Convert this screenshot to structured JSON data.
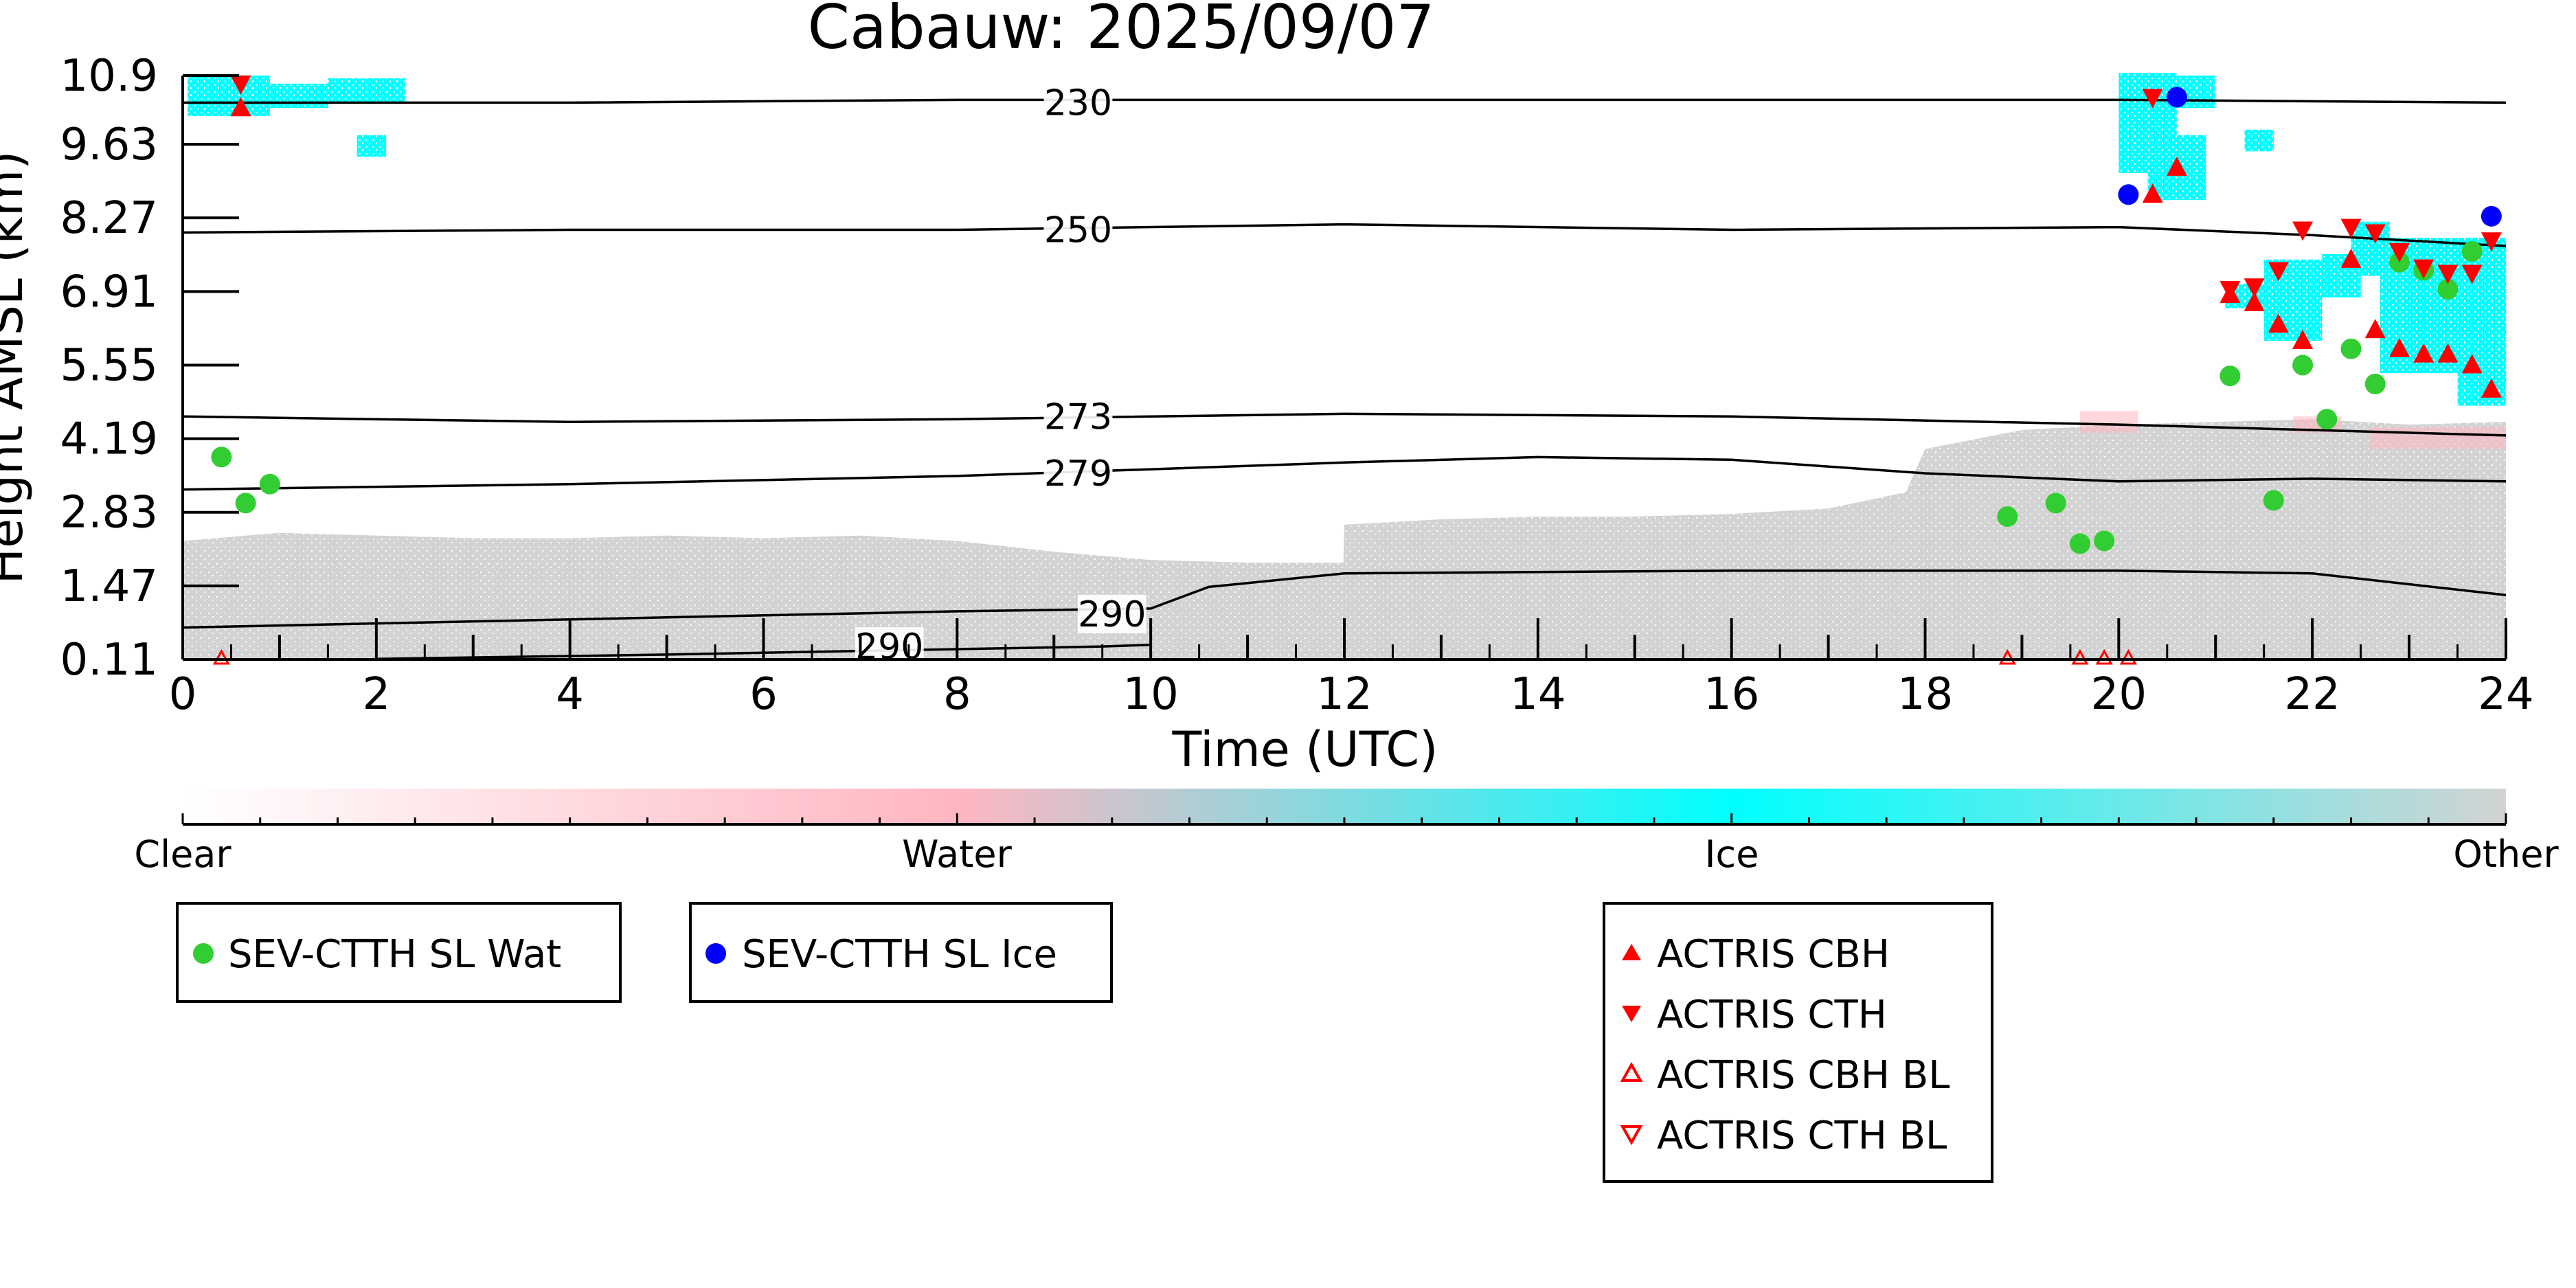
{
  "chart_data": {
    "type": "scatter",
    "title": "Cabauw: 2025/09/07",
    "xlabel": "Time (UTC)",
    "ylabel": "Height AMSL (km)",
    "xlim": [
      0,
      24
    ],
    "ylim": [
      0.11,
      10.9
    ],
    "x_ticks": [
      "0",
      "2",
      "4",
      "6",
      "8",
      "10",
      "12",
      "14",
      "16",
      "18",
      "20",
      "22",
      "24"
    ],
    "y_ticks": [
      "0.11",
      "1.47",
      "2.83",
      "4.19",
      "5.55",
      "6.91",
      "8.27",
      "9.63",
      "10.9"
    ],
    "colorbar": {
      "labels": [
        "Clear",
        "Water",
        "Ice",
        "Other"
      ],
      "colors": {
        "clear": "#ffffff",
        "water": "#ffb6c1",
        "ice": "#00ffff",
        "other": "#d3d3d3"
      }
    },
    "contours": [
      {
        "label": "230",
        "x": [
          0,
          4,
          8,
          12,
          16,
          20,
          24
        ],
        "y": [
          10.4,
          10.4,
          10.45,
          10.45,
          10.45,
          10.45,
          10.4
        ]
      },
      {
        "label": "250",
        "x": [
          0,
          4,
          8,
          12,
          16,
          20,
          22,
          24
        ],
        "y": [
          8.0,
          8.05,
          8.05,
          8.15,
          8.05,
          8.1,
          7.95,
          7.75
        ]
      },
      {
        "label": "273",
        "x": [
          0,
          4,
          8,
          12,
          16,
          20,
          22,
          24
        ],
        "y": [
          4.6,
          4.5,
          4.55,
          4.65,
          4.6,
          4.45,
          4.35,
          4.25
        ]
      },
      {
        "label": "279",
        "x": [
          0,
          4,
          8,
          12,
          14,
          16,
          18,
          20,
          22,
          24
        ],
        "y": [
          3.25,
          3.35,
          3.5,
          3.75,
          3.85,
          3.8,
          3.55,
          3.4,
          3.45,
          3.4
        ]
      },
      {
        "label": "290",
        "x": [
          0,
          4,
          8,
          10,
          10.6,
          12,
          16,
          20,
          22,
          24
        ],
        "y": [
          0.7,
          0.85,
          1.0,
          1.05,
          1.45,
          1.7,
          1.75,
          1.75,
          1.7,
          1.3
        ]
      },
      {
        "label": "290",
        "x": [
          2,
          5,
          8,
          9.5,
          10
        ],
        "y": [
          0.12,
          0.2,
          0.3,
          0.35,
          0.38
        ]
      }
    ],
    "series": [
      {
        "name": "SEV-CTTH SL Wat",
        "color": "#32cd32",
        "marker": "circle",
        "x": [
          0.4,
          0.65,
          0.9,
          18.85,
          19.35,
          19.6,
          19.85,
          21.15,
          21.6,
          21.9,
          22.15,
          22.4,
          22.65,
          22.9,
          23.15,
          23.4,
          23.65
        ],
        "y": [
          3.85,
          3.0,
          3.35,
          2.75,
          3.0,
          2.25,
          2.3,
          5.35,
          3.05,
          5.55,
          4.55,
          5.85,
          5.2,
          7.45,
          7.3,
          6.95,
          7.65
        ]
      },
      {
        "name": "SEV-CTTH SL Ice",
        "color": "#0000ff",
        "marker": "circle",
        "x": [
          20.1,
          20.6,
          23.85
        ],
        "y": [
          8.7,
          10.5,
          8.3
        ]
      },
      {
        "name": "ACTRIS CBH",
        "color": "#ff0000",
        "marker": "triangle-up",
        "x": [
          0.6,
          20.35,
          20.6,
          21.15,
          21.4,
          21.65,
          21.9,
          22.4,
          22.65,
          22.9,
          23.15,
          23.4,
          23.65,
          23.85
        ],
        "y": [
          10.3,
          8.7,
          9.2,
          6.85,
          6.7,
          6.3,
          6.0,
          7.5,
          6.2,
          5.85,
          5.75,
          5.75,
          5.55,
          5.1
        ]
      },
      {
        "name": "ACTRIS CTH",
        "color": "#ff0000",
        "marker": "triangle-down",
        "x": [
          0.6,
          20.35,
          21.15,
          21.4,
          21.65,
          21.9,
          22.4,
          22.65,
          22.9,
          23.15,
          23.4,
          23.65,
          23.85
        ],
        "y": [
          10.75,
          10.5,
          6.95,
          7.0,
          7.3,
          8.05,
          8.1,
          8.0,
          7.65,
          7.35,
          7.25,
          7.25,
          7.85
        ]
      },
      {
        "name": "ACTRIS CBH BL",
        "color": "#ff0000",
        "marker": "triangle-up-open",
        "x": [
          0.4,
          18.85,
          19.6,
          19.85,
          20.1
        ],
        "y": [
          0.11,
          0.11,
          0.11,
          0.11,
          0.11
        ]
      },
      {
        "name": "ACTRIS CTH BL",
        "color": "#ff0000",
        "marker": "triangle-down-open",
        "x": [],
        "y": []
      }
    ],
    "legends": [
      {
        "entries": [
          "SEV-CTTH SL Wat"
        ]
      },
      {
        "entries": [
          "SEV-CTTH SL Ice"
        ]
      },
      {
        "entries": [
          "ACTRIS CBH",
          "ACTRIS CTH",
          "ACTRIS CBH BL",
          "ACTRIS CTH BL"
        ]
      }
    ]
  }
}
